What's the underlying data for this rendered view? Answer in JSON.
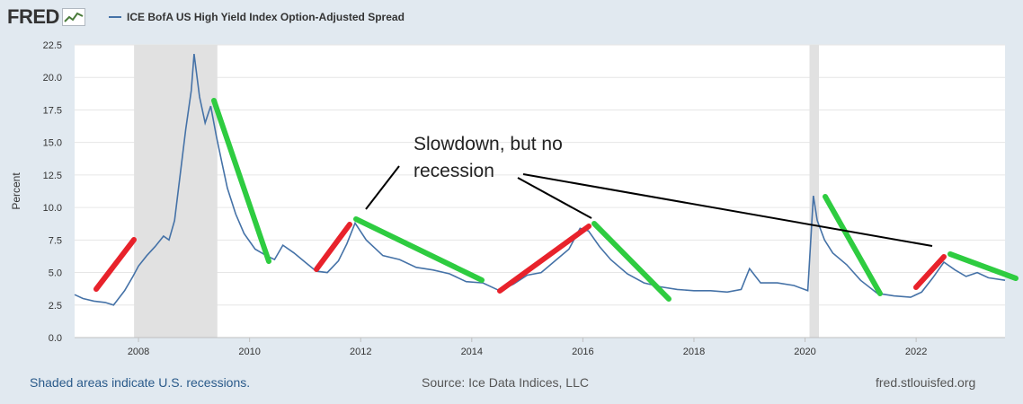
{
  "header": {
    "logo_text": "FRED",
    "logo_icon": "line-chart-icon",
    "legend_label": "ICE BofA US High Yield Index Option-Adjusted Spread",
    "series_color": "#4572a7"
  },
  "footer": {
    "recession_note": "Shaded areas indicate U.S. recessions.",
    "source": "Source: Ice Data Indices, LLC",
    "site": "fred.stlouisfed.org"
  },
  "annotation": {
    "text_line1": "Slowdown, but no",
    "text_line2": "recession"
  },
  "colors": {
    "background": "#e1e9f0",
    "plot_background": "#ffffff",
    "gridline": "#e6e6e6",
    "series": "#4572a7",
    "recession_shade": "#e1e1e1",
    "rise_marker": "#e8222b",
    "fall_marker": "#2ecc40"
  },
  "chart_data": {
    "type": "line",
    "title": "",
    "xlabel": "",
    "ylabel": "Percent",
    "xlim": [
      2006.85,
      2023.6
    ],
    "ylim": [
      0,
      22.5
    ],
    "x_ticks": [
      2008,
      2010,
      2012,
      2014,
      2016,
      2018,
      2020,
      2022
    ],
    "y_ticks": [
      0.0,
      2.5,
      5.0,
      7.5,
      10.0,
      12.5,
      15.0,
      17.5,
      20.0,
      22.5
    ],
    "y_tick_labels": [
      "0.0",
      "2.5",
      "5.0",
      "7.5",
      "10.0",
      "12.5",
      "15.0",
      "17.5",
      "20.0",
      "22.5"
    ],
    "grid": true,
    "legend_position": "top-left",
    "recessions": [
      [
        2007.92,
        2009.42
      ],
      [
        2020.08,
        2020.25
      ]
    ],
    "series": [
      {
        "name": "ICE BofA US High Yield Index Option-Adjusted Spread",
        "x": [
          2006.85,
          2007.0,
          2007.2,
          2007.4,
          2007.55,
          2007.75,
          2007.9,
          2008.0,
          2008.15,
          2008.3,
          2008.45,
          2008.55,
          2008.65,
          2008.75,
          2008.85,
          2008.95,
          2009.0,
          2009.1,
          2009.2,
          2009.3,
          2009.4,
          2009.5,
          2009.6,
          2009.75,
          2009.9,
          2010.1,
          2010.3,
          2010.45,
          2010.6,
          2010.8,
          2011.0,
          2011.2,
          2011.4,
          2011.6,
          2011.75,
          2011.9,
          2012.1,
          2012.4,
          2012.7,
          2013.0,
          2013.3,
          2013.6,
          2013.9,
          2014.2,
          2014.5,
          2014.75,
          2015.0,
          2015.25,
          2015.5,
          2015.75,
          2015.95,
          2016.1,
          2016.3,
          2016.5,
          2016.8,
          2017.1,
          2017.4,
          2017.7,
          2018.0,
          2018.3,
          2018.6,
          2018.85,
          2019.0,
          2019.2,
          2019.5,
          2019.8,
          2020.05,
          2020.15,
          2020.22,
          2020.35,
          2020.5,
          2020.75,
          2021.0,
          2021.3,
          2021.6,
          2021.9,
          2022.1,
          2022.3,
          2022.5,
          2022.7,
          2022.9,
          2023.1,
          2023.3,
          2023.6
        ],
        "values": [
          3.3,
          3.0,
          2.8,
          2.7,
          2.5,
          3.6,
          4.7,
          5.5,
          6.3,
          7.0,
          7.8,
          7.5,
          9.0,
          12.5,
          16.0,
          19.0,
          21.8,
          18.5,
          16.5,
          17.8,
          15.5,
          13.5,
          11.5,
          9.5,
          8.0,
          6.8,
          6.3,
          6.0,
          7.1,
          6.5,
          5.8,
          5.1,
          5.0,
          5.9,
          7.2,
          8.8,
          7.5,
          6.3,
          6.0,
          5.4,
          5.2,
          4.9,
          4.3,
          4.2,
          3.6,
          4.1,
          4.8,
          5.0,
          5.9,
          6.8,
          8.4,
          8.2,
          7.0,
          6.0,
          4.9,
          4.2,
          3.9,
          3.7,
          3.6,
          3.6,
          3.5,
          3.7,
          5.3,
          4.2,
          4.2,
          4.0,
          3.6,
          10.9,
          9.0,
          7.5,
          6.5,
          5.6,
          4.4,
          3.4,
          3.2,
          3.1,
          3.5,
          4.6,
          5.8,
          5.2,
          4.7,
          5.0,
          4.6,
          4.4
        ]
      }
    ]
  }
}
